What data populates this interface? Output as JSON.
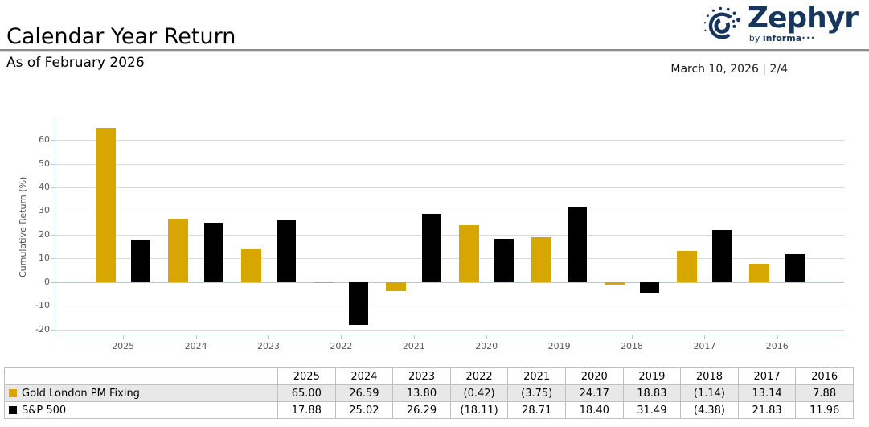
{
  "header": {
    "title": "Calendar Year Return",
    "subtitle": "As of February 2026",
    "date_line": "March 10, 2026 | 2/4",
    "logo": {
      "brand": "Zephyr",
      "sub_prefix": "by ",
      "sub_brand": "informa",
      "sub_dots": "•••"
    }
  },
  "colors": {
    "gold": "#d8a600",
    "black": "#000000",
    "navy": "#17365d",
    "axis": "#adccdb",
    "grid": "#d9d9d9",
    "tick_text": "#595959"
  },
  "chart_data": {
    "type": "bar",
    "title": "Calendar Year Return",
    "ylabel": "Cumulative Return (%)",
    "categories": [
      "2025",
      "2024",
      "2023",
      "2022",
      "2021",
      "2020",
      "2019",
      "2018",
      "2017",
      "2016"
    ],
    "series": [
      {
        "name": "Gold London PM Fixing",
        "color": "#d8a600",
        "values": [
          65.0,
          26.59,
          13.8,
          -0.42,
          -3.75,
          24.17,
          18.83,
          -1.14,
          13.14,
          7.88
        ]
      },
      {
        "name": "S&P 500",
        "color": "#000000",
        "values": [
          17.88,
          25.02,
          26.29,
          -18.11,
          28.71,
          18.4,
          31.49,
          -4.38,
          21.83,
          11.96
        ]
      }
    ],
    "yticks": [
      -20,
      -10,
      0,
      10,
      20,
      30,
      40,
      50,
      60
    ],
    "ylim": [
      -22.5,
      69.2
    ],
    "grid": true,
    "legend_position": "table-below"
  },
  "table": {
    "columns": [
      "",
      "2025",
      "2024",
      "2023",
      "2022",
      "2021",
      "2020",
      "2019",
      "2018",
      "2017",
      "2016"
    ],
    "rows": [
      {
        "name": "Gold London PM Fixing",
        "swatch": "#d8a600",
        "values": [
          "65.00",
          "26.59",
          "13.80",
          "(0.42)",
          "(3.75)",
          "24.17",
          "18.83",
          "(1.14)",
          "13.14",
          "7.88"
        ]
      },
      {
        "name": "S&P 500",
        "swatch": "#000000",
        "values": [
          "17.88",
          "25.02",
          "26.29",
          "(18.11)",
          "28.71",
          "18.40",
          "31.49",
          "(4.38)",
          "21.83",
          "11.96"
        ]
      }
    ]
  }
}
